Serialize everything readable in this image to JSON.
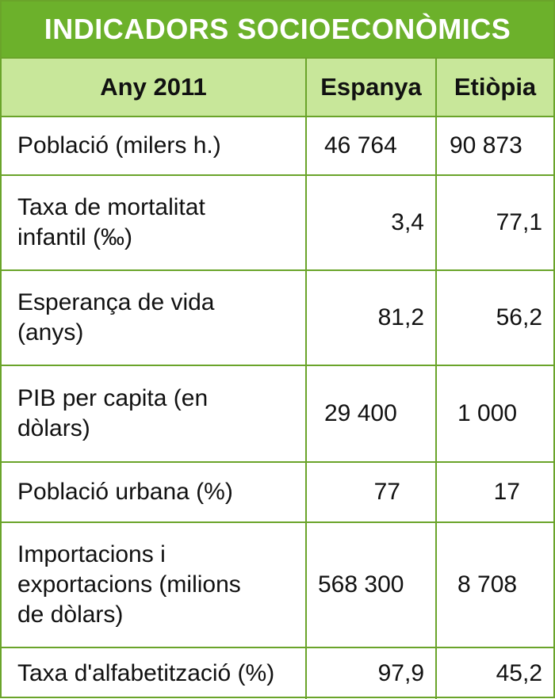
{
  "title": "INDICADORS SOCIOECONÒMICS",
  "header": {
    "year": "Any 2011",
    "col_spain": "Espanya",
    "col_ethiopia": "Etiòpia"
  },
  "rows": [
    {
      "label": "Població (milers h.)",
      "spain": "46 764",
      "ethiopia": "90 873"
    },
    {
      "label": "Taxa de mortalitat infantil (‰)",
      "spain": "3,4",
      "ethiopia": "77,1"
    },
    {
      "label": "Esperança de vida (anys)",
      "spain": "81,2",
      "ethiopia": "56,2"
    },
    {
      "label": "PIB per capita (en dòlars)",
      "spain": "29 400",
      "ethiopia": "1 000"
    },
    {
      "label": "Població urbana (%)",
      "spain": "77",
      "ethiopia": "17"
    },
    {
      "label": "Importacions i exportacions (milions de dòlars)",
      "spain": "568 300",
      "ethiopia": "8 708"
    },
    {
      "label": "Taxa d'alfabetització (%)",
      "spain": "97,9",
      "ethiopia": "45,2"
    }
  ],
  "colors": {
    "header_green": "#6cb12b",
    "subheader_green": "#c8e79a",
    "border_green": "#6aa42a"
  }
}
